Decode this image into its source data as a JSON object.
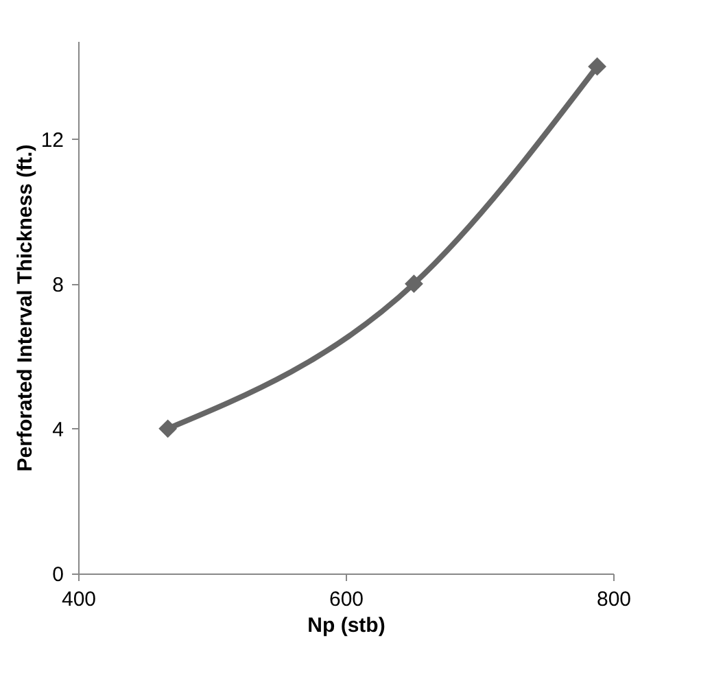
{
  "chart_data": {
    "type": "line",
    "xlabel": "Np (stb)",
    "ylabel": "Perforated Interval Thickness (ft.)",
    "x": [
      467,
      651,
      788
    ],
    "series": [
      {
        "color": "#666666",
        "values": [
          4,
          8,
          14
        ]
      }
    ],
    "xlim": [
      400,
      800
    ],
    "xticks": [
      400,
      600,
      800
    ],
    "ylim": [
      0,
      14.7
    ],
    "yticks": [
      0,
      4,
      8,
      12
    ],
    "grid": false,
    "marker": "diamond",
    "line_style": "solid"
  }
}
